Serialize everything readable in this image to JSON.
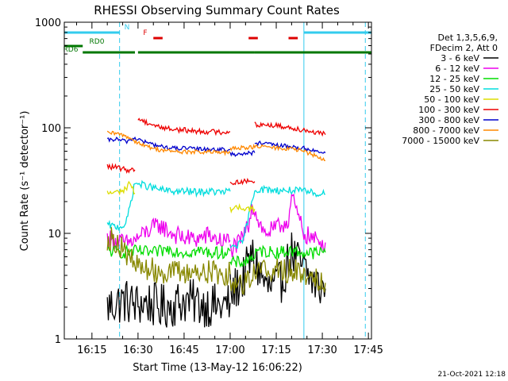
{
  "chart_data": {
    "type": "line",
    "title": "RHESSI Observing Summary Count Rates",
    "xlabel": "Start Time (13-May-12 16:06:22)",
    "ylabel": "Count Rate (s⁻¹ detector⁻¹)",
    "y_scale": "log",
    "ylim": [
      1,
      1000
    ],
    "xlim": [
      "16:06",
      "17:46"
    ],
    "x_ticks": [
      "16:15",
      "16:30",
      "16:45",
      "17:00",
      "17:15",
      "17:30",
      "17:45"
    ],
    "y_ticks": [
      "1",
      "10",
      "100",
      "1000"
    ],
    "footer_date": "21-Oct-2021 12:18",
    "grid": false,
    "legend": {
      "placement": "right",
      "header": [
        "Det 1,3,5,6,9,",
        "FDecim 2, Att 0"
      ]
    },
    "flags": [
      {
        "label": "N",
        "color": "#33ccee",
        "intervals": [
          [
            "16:06",
            "16:24"
          ],
          [
            "17:24",
            "17:46"
          ]
        ]
      },
      {
        "label": "F",
        "color": "#dd0000",
        "intervals": [
          [
            "16:35",
            "16:38"
          ],
          [
            "17:06",
            "17:09"
          ],
          [
            "17:19",
            "17:22"
          ]
        ]
      },
      {
        "label": "RD0",
        "color": "#007700",
        "intervals": [
          [
            "16:06",
            "16:12"
          ]
        ]
      },
      {
        "label": "RD6",
        "color": "#007700",
        "intervals": [
          [
            "16:12",
            "16:29"
          ],
          [
            "16:30",
            "17:00"
          ],
          [
            "17:00",
            "17:08"
          ],
          [
            "17:08",
            "17:46"
          ]
        ]
      }
    ],
    "night_boundaries": [
      "16:06",
      "16:24",
      "17:24",
      "17:44"
    ],
    "series": [
      {
        "name": "3 - 6 keV",
        "color": "#000000",
        "segments": [
          {
            "x": [
              "16:20",
              "16:23",
              "16:26",
              "16:29",
              "16:33",
              "16:37",
              "16:41",
              "16:45",
              "16:49",
              "16:53",
              "16:57",
              "17:00"
            ],
            "y": [
              2.0,
              2.2,
              2.3,
              2.1,
              2.2,
              2.0,
              2.1,
              2.3,
              2.2,
              2.1,
              2.0,
              2.2
            ]
          },
          {
            "x": [
              "17:00",
              "17:04",
              "17:07",
              "17:08",
              "17:12",
              "17:16",
              "17:20",
              "17:24",
              "17:28",
              "17:31"
            ],
            "y": [
              2.6,
              3.6,
              6.0,
              5.5,
              3.0,
              3.2,
              6.5,
              4.5,
              3.2,
              3.0
            ]
          }
        ]
      },
      {
        "name": "6 - 12 keV",
        "color": "#ee00ee",
        "segments": [
          {
            "x": [
              "16:20",
              "16:23",
              "16:26",
              "16:29",
              "16:33",
              "16:37",
              "16:41",
              "16:45",
              "16:49",
              "16:53",
              "16:57",
              "17:00"
            ],
            "y": [
              9.0,
              8.6,
              8.0,
              8.6,
              10.5,
              12.0,
              10.0,
              9.0,
              8.8,
              9.6,
              8.4,
              8.6
            ]
          },
          {
            "x": [
              "17:00",
              "17:03",
              "17:06",
              "17:07",
              "17:11",
              "17:15",
              "17:19",
              "17:20",
              "17:24",
              "17:28",
              "17:31"
            ],
            "y": [
              7.0,
              8.0,
              12.0,
              19.0,
              10.0,
              11.0,
              13.5,
              22.0,
              10.0,
              8.5,
              8.2
            ]
          }
        ]
      },
      {
        "name": "12 - 25 keV",
        "color": "#00dd00",
        "segments": [
          {
            "x": [
              "16:20",
              "16:25",
              "16:30",
              "16:35",
              "16:40",
              "16:45",
              "16:50",
              "16:55",
              "17:00"
            ],
            "y": [
              6.8,
              6.6,
              6.8,
              6.5,
              7.1,
              6.6,
              6.8,
              6.5,
              6.8
            ]
          },
          {
            "x": [
              "17:00",
              "17:05",
              "17:10",
              "17:15",
              "17:20",
              "17:25",
              "17:31"
            ],
            "y": [
              5.2,
              5.4,
              6.8,
              6.6,
              6.8,
              6.5,
              6.6
            ]
          }
        ]
      },
      {
        "name": "25 - 50 keV",
        "color": "#00dddd",
        "segments": [
          {
            "x": [
              "16:20",
              "16:23",
              "16:26",
              "16:29",
              "16:33",
              "16:37",
              "16:41",
              "16:45",
              "16:49",
              "16:53",
              "16:57",
              "17:00"
            ],
            "y": [
              12.0,
              11.5,
              12.0,
              30.0,
              28.0,
              26.0,
              25.0,
              25.0,
              24.5,
              25.0,
              24.5,
              25.0
            ]
          },
          {
            "x": [
              "17:00",
              "17:04",
              "17:08",
              "17:12",
              "17:16",
              "17:20",
              "17:24",
              "17:28",
              "17:31"
            ],
            "y": [
              7.5,
              8.0,
              26.0,
              26.0,
              25.5,
              25.5,
              25.0,
              24.0,
              23.5
            ]
          }
        ]
      },
      {
        "name": "50 - 100 keV",
        "color": "#dddd00",
        "segments": [
          {
            "x": [
              "16:20",
              "16:23",
              "16:26",
              "16:27",
              "16:29"
            ],
            "y": [
              24.0,
              24.5,
              26.0,
              31.0,
              24.0
            ]
          },
          {
            "x": [
              "17:00",
              "17:04",
              "17:08"
            ],
            "y": [
              17.0,
              17.5,
              17.0
            ]
          }
        ]
      },
      {
        "name": "100 - 300 keV",
        "color": "#ee0000",
        "segments": [
          {
            "x": [
              "16:20",
              "16:23",
              "16:26",
              "16:29"
            ],
            "y": [
              43.0,
              42.0,
              40.0,
              40.0
            ]
          },
          {
            "x": [
              "16:30",
              "16:33",
              "16:37",
              "16:41",
              "16:45",
              "16:49",
              "16:53",
              "16:57",
              "17:00"
            ],
            "y": [
              122.0,
              112.0,
              102.0,
              97.0,
              95.0,
              93.0,
              92.0,
              91.0,
              92.0
            ]
          },
          {
            "x": [
              "17:00",
              "17:04",
              "17:08"
            ],
            "y": [
              30.0,
              31.0,
              31.0
            ]
          },
          {
            "x": [
              "17:08",
              "17:12",
              "17:16",
              "17:20",
              "17:24",
              "17:28",
              "17:31"
            ],
            "y": [
              108.0,
              107.0,
              104.0,
              100.0,
              96.0,
              90.0,
              86.0
            ]
          }
        ]
      },
      {
        "name": "300 - 800 keV",
        "color": "#0000cc",
        "segments": [
          {
            "x": [
              "16:20",
              "16:23",
              "16:26",
              "16:29",
              "16:33",
              "16:37",
              "16:41",
              "16:45",
              "16:49",
              "16:53",
              "16:57",
              "17:00"
            ],
            "y": [
              76.0,
              78.0,
              74.0,
              80.0,
              72.0,
              67.0,
              64.0,
              64.0,
              63.0,
              63.0,
              62.0,
              62.0
            ]
          },
          {
            "x": [
              "17:00",
              "17:04",
              "17:08"
            ],
            "y": [
              56.0,
              57.0,
              58.0
            ]
          },
          {
            "x": [
              "17:08",
              "17:12",
              "17:16",
              "17:20",
              "17:24",
              "17:28",
              "17:31"
            ],
            "y": [
              72.0,
              70.0,
              68.0,
              66.0,
              64.0,
              60.0,
              58.0
            ]
          }
        ]
      },
      {
        "name": "800 - 7000 keV",
        "color": "#ff8800",
        "segments": [
          {
            "x": [
              "16:20",
              "16:23",
              "16:26",
              "16:29",
              "16:33",
              "16:37",
              "16:41",
              "16:45",
              "16:49",
              "16:53",
              "16:57",
              "17:00"
            ],
            "y": [
              89.0,
              88.0,
              84.0,
              75.0,
              66.0,
              62.0,
              60.0,
              59.0,
              59.0,
              59.0,
              58.0,
              58.0
            ]
          },
          {
            "x": [
              "17:00",
              "17:04",
              "17:08",
              "17:12",
              "17:16",
              "17:20",
              "17:24",
              "17:28",
              "17:31"
            ],
            "y": [
              63.0,
              65.0,
              66.0,
              66.0,
              64.0,
              63.0,
              60.0,
              54.0,
              49.0
            ]
          }
        ]
      },
      {
        "name": "7000 - 15000 keV",
        "color": "#888800",
        "segments": [
          {
            "x": [
              "16:20",
              "16:23",
              "16:26",
              "16:29",
              "16:33",
              "16:37",
              "16:41",
              "16:45",
              "16:49",
              "16:53",
              "16:57",
              "17:00"
            ],
            "y": [
              9.0,
              8.5,
              6.5,
              5.0,
              4.6,
              4.4,
              4.3,
              4.2,
              4.4,
              4.3,
              4.2,
              4.1
            ]
          },
          {
            "x": [
              "17:00",
              "17:04",
              "17:08",
              "17:12",
              "17:16",
              "17:20",
              "17:24",
              "17:28",
              "17:31"
            ],
            "y": [
              3.4,
              3.4,
              4.4,
              4.6,
              4.5,
              4.4,
              4.2,
              3.8,
              3.4
            ]
          }
        ]
      }
    ]
  }
}
